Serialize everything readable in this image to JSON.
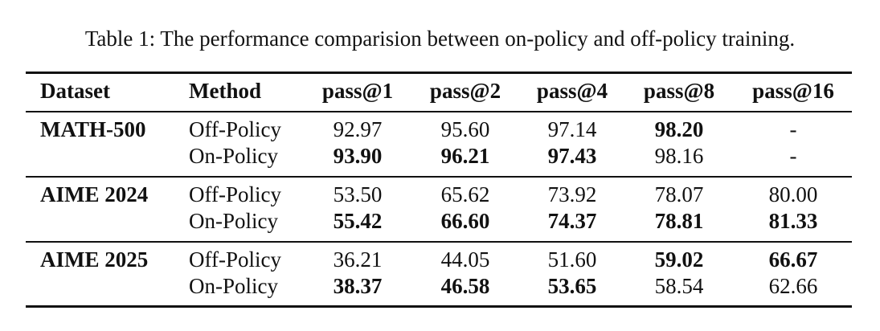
{
  "caption": "Table 1: The performance comparision between on-policy and off-policy training.",
  "columns": [
    "Dataset",
    "Method",
    "pass@1",
    "pass@2",
    "pass@4",
    "pass@8",
    "pass@16"
  ],
  "groups": [
    {
      "dataset": "MATH-500",
      "rows": [
        {
          "method": "Off-Policy",
          "values": [
            "92.97",
            "95.60",
            "97.14",
            "98.20",
            "-"
          ],
          "bold": [
            false,
            false,
            false,
            true,
            false
          ]
        },
        {
          "method": "On-Policy",
          "values": [
            "93.90",
            "96.21",
            "97.43",
            "98.16",
            "-"
          ],
          "bold": [
            true,
            true,
            true,
            false,
            false
          ]
        }
      ]
    },
    {
      "dataset": "AIME 2024",
      "rows": [
        {
          "method": "Off-Policy",
          "values": [
            "53.50",
            "65.62",
            "73.92",
            "78.07",
            "80.00"
          ],
          "bold": [
            false,
            false,
            false,
            false,
            false
          ]
        },
        {
          "method": "On-Policy",
          "values": [
            "55.42",
            "66.60",
            "74.37",
            "78.81",
            "81.33"
          ],
          "bold": [
            true,
            true,
            true,
            true,
            true
          ]
        }
      ]
    },
    {
      "dataset": "AIME 2025",
      "rows": [
        {
          "method": "Off-Policy",
          "values": [
            "36.21",
            "44.05",
            "51.60",
            "59.02",
            "66.67"
          ],
          "bold": [
            false,
            false,
            false,
            true,
            true
          ]
        },
        {
          "method": "On-Policy",
          "values": [
            "38.37",
            "46.58",
            "53.65",
            "58.54",
            "62.66"
          ],
          "bold": [
            true,
            true,
            true,
            false,
            false
          ]
        }
      ]
    }
  ]
}
